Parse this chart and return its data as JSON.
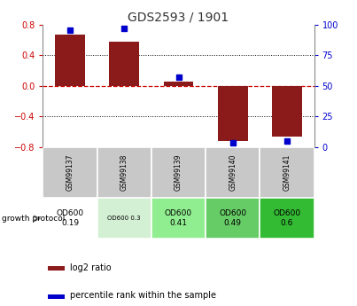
{
  "title": "GDS2593 / 1901",
  "samples": [
    "GSM99137",
    "GSM99138",
    "GSM99139",
    "GSM99140",
    "GSM99141"
  ],
  "log2_ratio": [
    0.67,
    0.58,
    0.05,
    -0.72,
    -0.67
  ],
  "percentile_rank": [
    95,
    97,
    57,
    3,
    5
  ],
  "ylim_left": [
    -0.8,
    0.8
  ],
  "ylim_right": [
    0,
    100
  ],
  "yticks_left": [
    -0.8,
    -0.4,
    0,
    0.4,
    0.8
  ],
  "yticks_right": [
    0,
    25,
    50,
    75,
    100
  ],
  "bar_color": "#8B1A1A",
  "dot_color": "#0000CD",
  "grid_color": "#000000",
  "zero_line_color": "#CC0000",
  "protocol_labels": [
    "OD600\n0.19",
    "OD600 0.3",
    "OD600\n0.41",
    "OD600\n0.49",
    "OD600\n0.6"
  ],
  "protocol_bg": [
    "#ffffff",
    "#d4f0d4",
    "#90EE90",
    "#66CC66",
    "#33BB33"
  ],
  "sample_bg": "#C8C8C8",
  "title_color": "#333333",
  "legend_red_label": "log2 ratio",
  "legend_blue_label": "percentile rank within the sample",
  "left_tick_color": "#CC0000",
  "right_tick_color": "#0000CD"
}
